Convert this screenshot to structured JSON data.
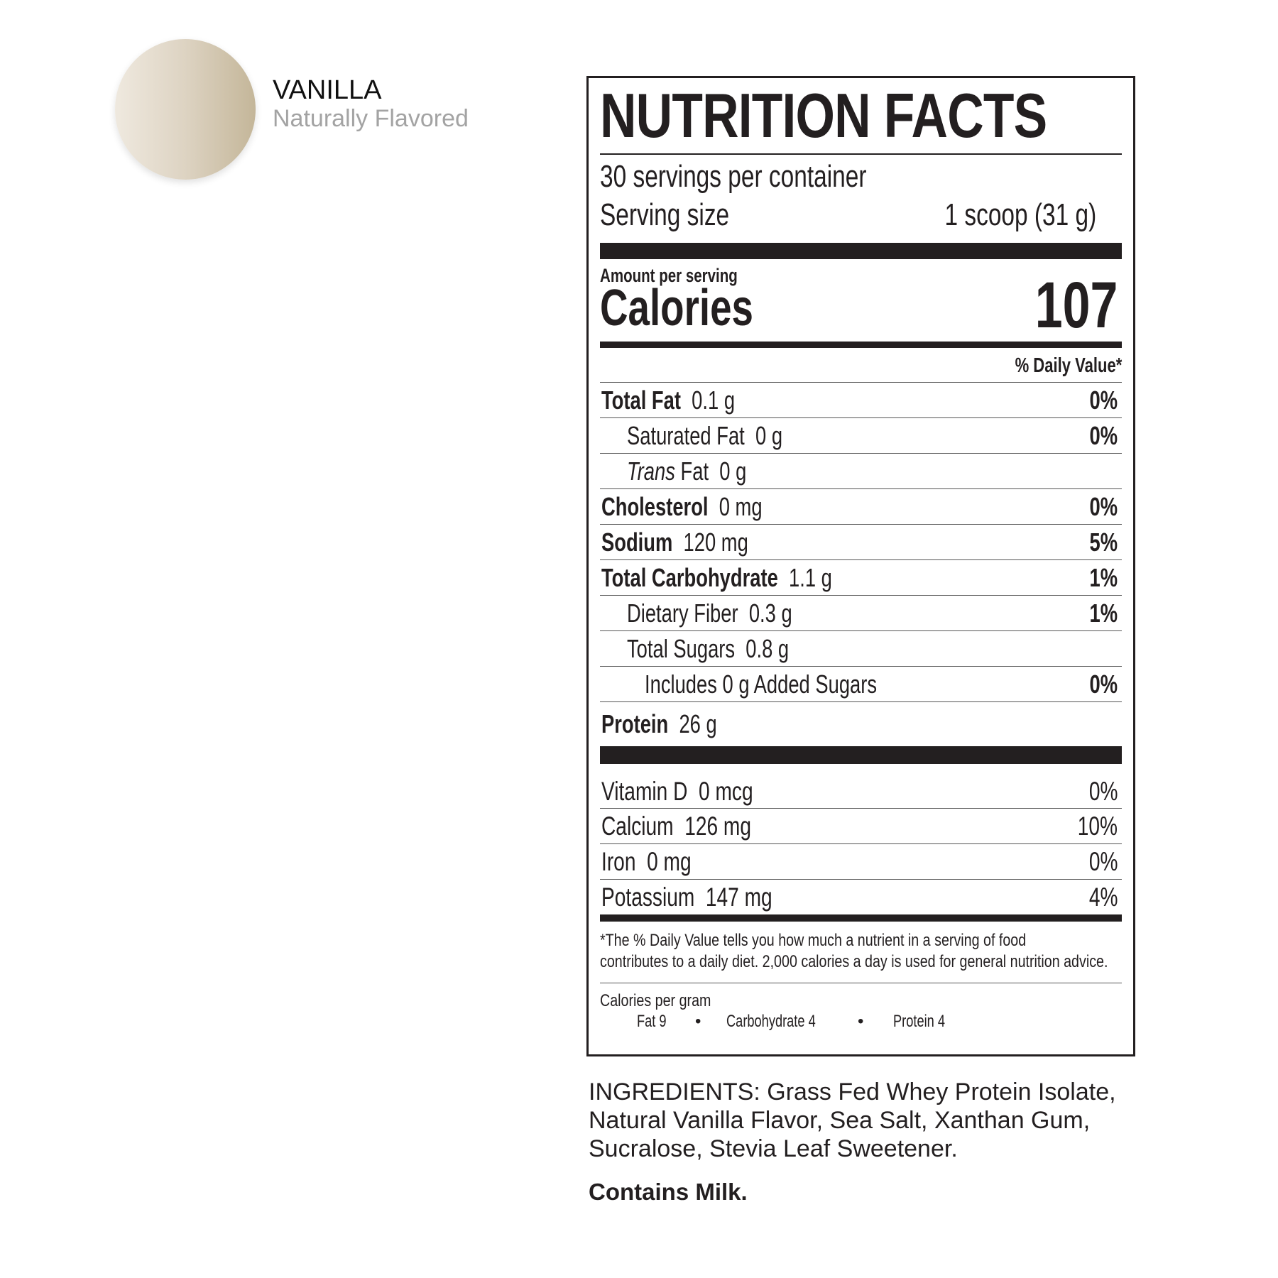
{
  "flavor": {
    "name": "VANILLA",
    "subtitle": "Naturally Flavored",
    "swatch_color": "#d9cfbd"
  },
  "label": {
    "title": "NUTRITION FACTS",
    "servings": "30 servings per container",
    "serving_size_label": "Serving size",
    "serving_size_value": "1 scoop (31 g)",
    "amount_per_serving": "Amount per serving",
    "calories_label": "Calories",
    "calories_value": "107",
    "daily_value_header": "% Daily Value*",
    "nutrients": [
      {
        "name": "Total Fat",
        "amount": "0.1 g",
        "dv": "0%",
        "bold": true,
        "indent": 0
      },
      {
        "name": "Saturated Fat",
        "amount": "0 g",
        "dv": "0%",
        "bold": false,
        "indent": 1
      },
      {
        "name_italic": "Trans",
        "name": "Fat",
        "amount": "0 g",
        "dv": "",
        "bold": false,
        "indent": 1
      },
      {
        "name": "Cholesterol",
        "amount": "0 mg",
        "dv": "0%",
        "bold": true,
        "indent": 0
      },
      {
        "name": "Sodium",
        "amount": "120 mg",
        "dv": "5%",
        "bold": true,
        "indent": 0
      },
      {
        "name": "Total Carbohydrate",
        "amount": "1.1 g",
        "dv": "1%",
        "bold": true,
        "indent": 0
      },
      {
        "name": "Dietary Fiber",
        "amount": "0.3 g",
        "dv": "1%",
        "bold": false,
        "indent": 1
      },
      {
        "name": "Total Sugars",
        "amount": "0.8 g",
        "dv": "",
        "bold": false,
        "indent": 1
      },
      {
        "name": "Includes 0 g Added Sugars",
        "amount": "",
        "dv": "0%",
        "bold": false,
        "indent": 2
      },
      {
        "name": "Protein",
        "amount": "26 g",
        "dv": "",
        "bold": true,
        "indent": 0
      }
    ],
    "vitamins": [
      {
        "name": "Vitamin D",
        "amount": "0 mcg",
        "dv": "0%"
      },
      {
        "name": "Calcium",
        "amount": "126 mg",
        "dv": "10%"
      },
      {
        "name": "Iron",
        "amount": "0 mg",
        "dv": "0%"
      },
      {
        "name": "Potassium",
        "amount": "147 mg",
        "dv": "4%"
      }
    ],
    "footnote_line1": "*The % Daily Value tells you how much a nutrient in a serving of food",
    "footnote_line2": "contributes to a daily diet. 2,000 calories a day is used for general nutrition advice.",
    "calories_per_gram": "Calories per gram",
    "cpg_fat": "Fat 9",
    "cpg_carb": "Carbohydrate 4",
    "cpg_protein": "Protein 4",
    "bullet": "•"
  },
  "ingredients": {
    "line1": "INGREDIENTS: Grass Fed Whey Protein Isolate,",
    "line2": "Natural Vanilla Flavor, Sea Salt, Xanthan Gum,",
    "line3": "Sucralose, Stevia Leaf Sweetener.",
    "allergen": "Contains Milk."
  }
}
